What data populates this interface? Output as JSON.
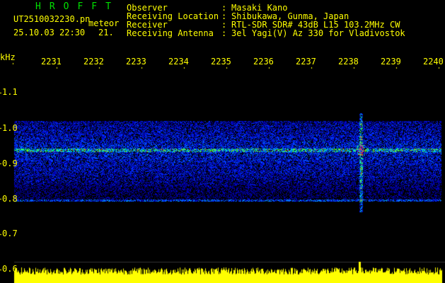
{
  "header": {
    "app_title": "HROFFT",
    "filename": "UT2510032230.pn",
    "mode": "meteor",
    "datetime": "25.10.03 22:30",
    "value": "21.",
    "info_labels": [
      "Observer",
      "Receiving Location",
      "Receiver",
      "Receiving Antenna"
    ],
    "info_values": [
      "Masaki Kano",
      "Shibukawa, Gunma, Japan",
      "RTL-SDR SDR# 43dB L15 103.2MHz CW",
      "3el Yagi(V) Az 330 for Vladivostok"
    ]
  },
  "axes": {
    "y_unit": "kHz",
    "y_ticks": [
      "1.1",
      "1.0",
      "0.9",
      "0.8",
      "0.7",
      "0.6"
    ],
    "x_ticks": [
      "2231",
      "2232",
      "2233",
      "2234",
      "2235",
      "2236",
      "2237",
      "2238",
      "2239",
      "2240"
    ]
  },
  "colors": {
    "text": "#ffff00",
    "title": "#00e000",
    "background": "#000000"
  }
}
